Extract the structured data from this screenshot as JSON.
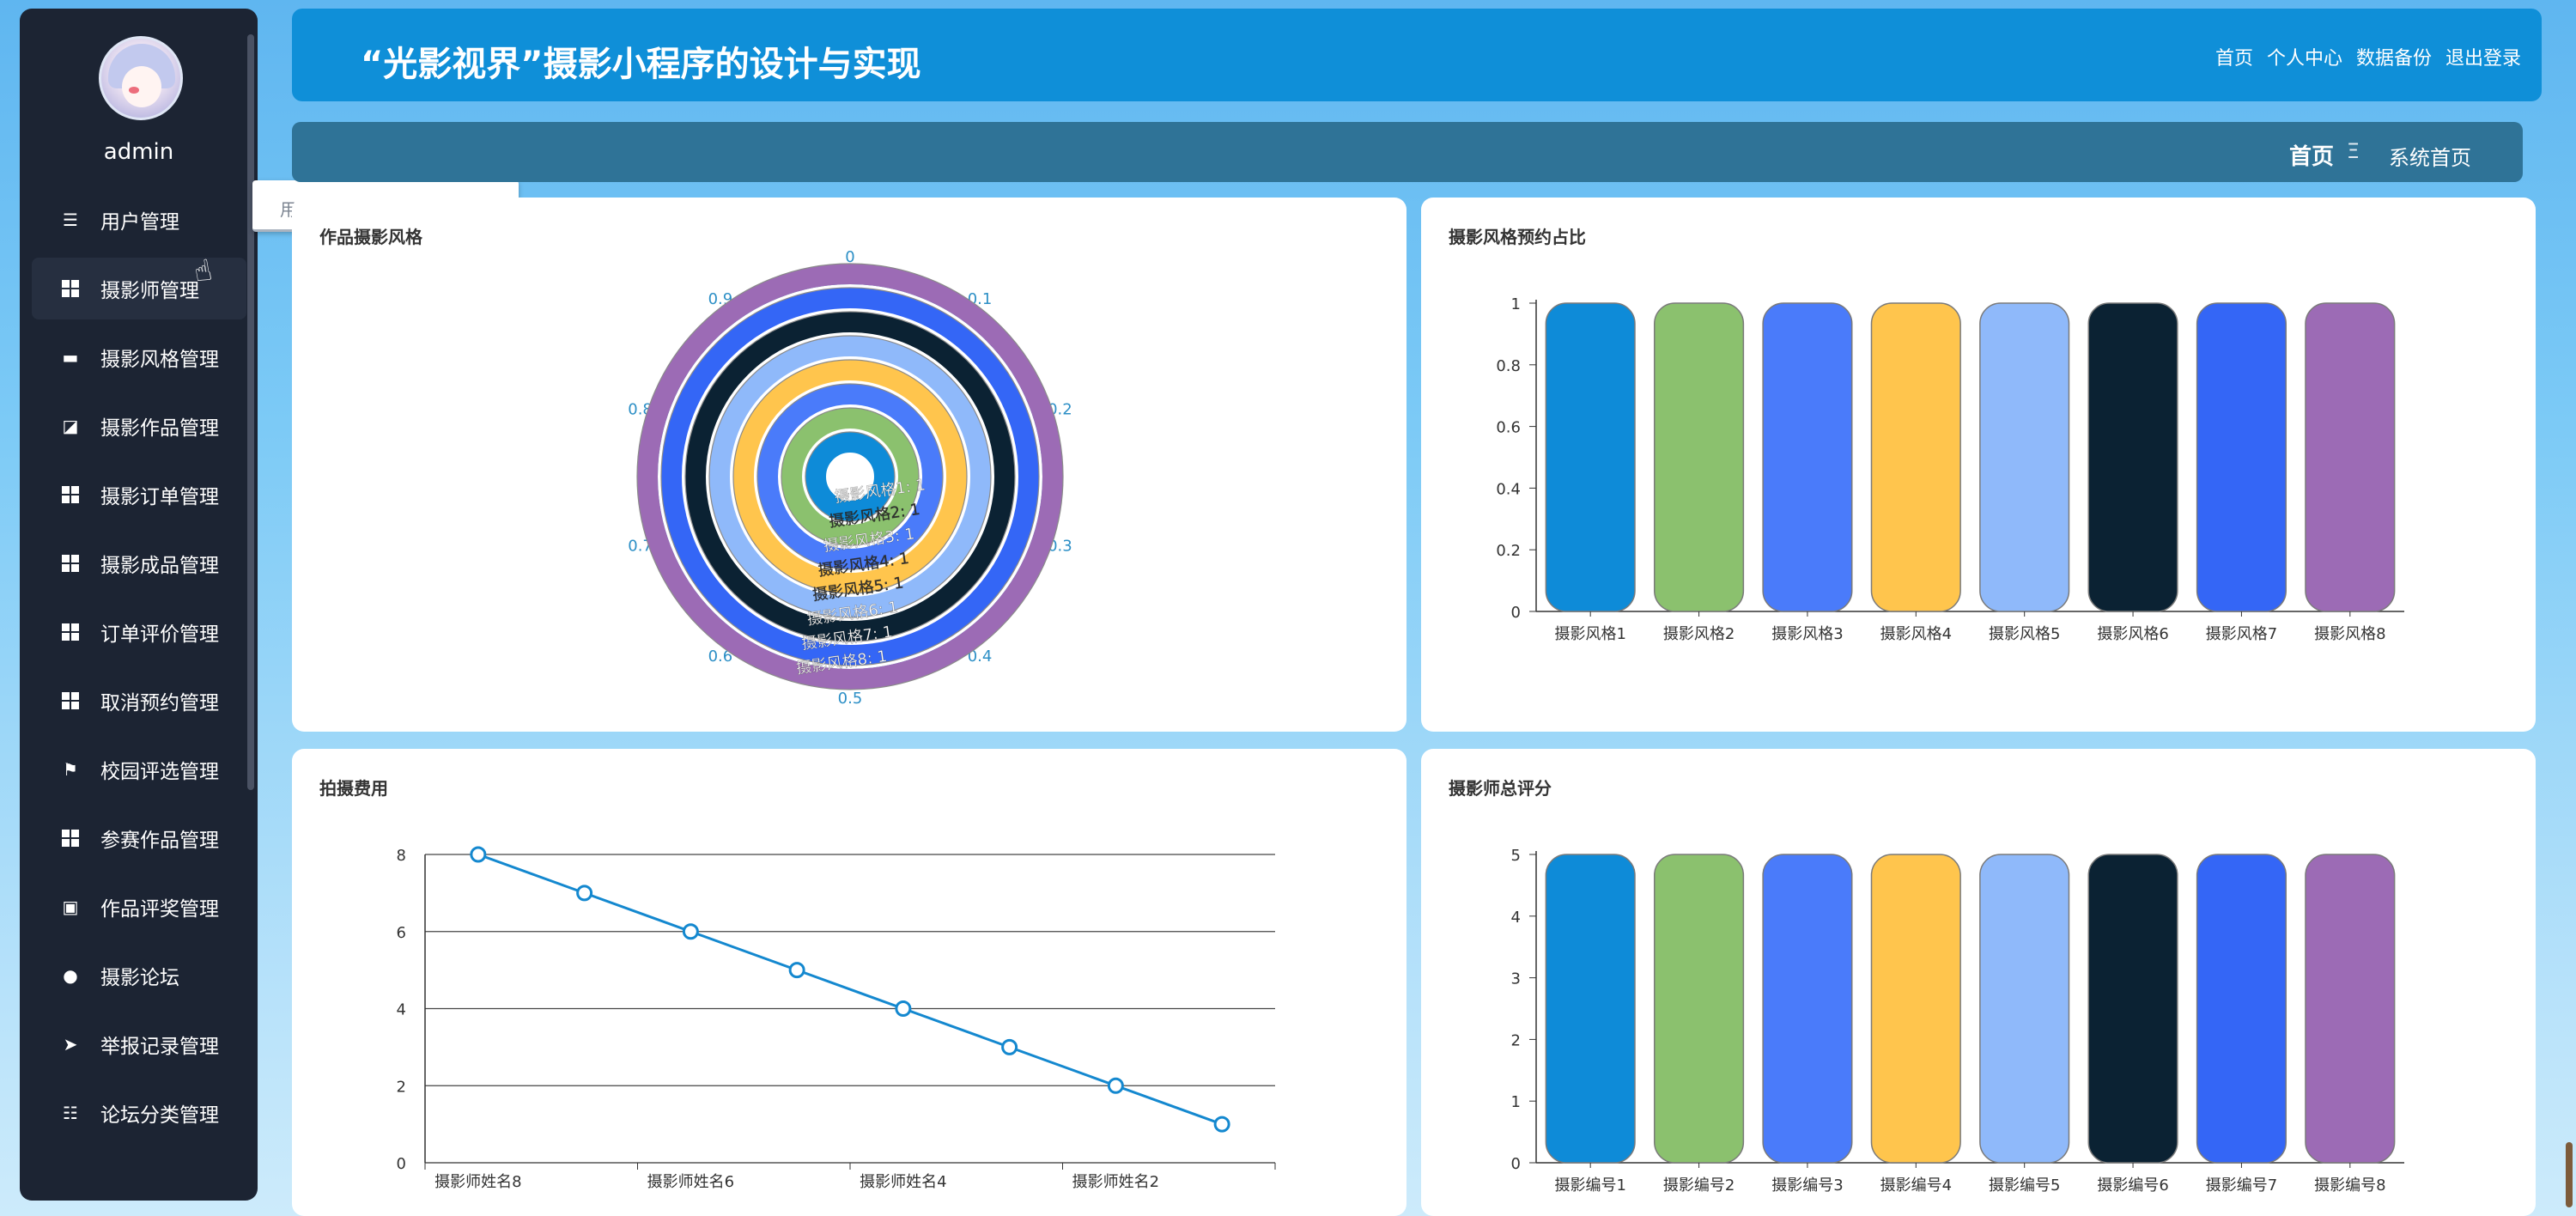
{
  "header": {
    "title": "“光影视界”摄影小程序的设计与实现",
    "nav": [
      "首页",
      "个人中心",
      "数据备份",
      "退出登录"
    ]
  },
  "breadcrumb": {
    "home": "首页",
    "separator": "Ξ",
    "current": "系统首页"
  },
  "sidebar": {
    "username": "admin",
    "items": [
      {
        "label": "用户管理",
        "icon": "list-icon"
      },
      {
        "label": "摄影师管理",
        "icon": "grid-icon"
      },
      {
        "label": "摄影风格管理",
        "icon": "monitor-icon"
      },
      {
        "label": "摄影作品管理",
        "icon": "chart-icon"
      },
      {
        "label": "摄影订单管理",
        "icon": "grid-icon"
      },
      {
        "label": "摄影成品管理",
        "icon": "grid-icon"
      },
      {
        "label": "订单评价管理",
        "icon": "grid-icon"
      },
      {
        "label": "取消预约管理",
        "icon": "grid-icon"
      },
      {
        "label": "校园评选管理",
        "icon": "flag-icon"
      },
      {
        "label": "参赛作品管理",
        "icon": "grid-icon"
      },
      {
        "label": "作品评奖管理",
        "icon": "clipboard-icon"
      },
      {
        "label": "摄影论坛",
        "icon": "user-icon"
      },
      {
        "label": "举报记录管理",
        "icon": "send-icon"
      },
      {
        "label": "论坛分类管理",
        "icon": "sliders-icon"
      }
    ],
    "submenu": {
      "label": "用户"
    }
  },
  "colors": {
    "palette": [
      "#0e8bd8",
      "#8bc16e",
      "#4a7bfa",
      "#ffc54d",
      "#8fb9fa",
      "#0b2233",
      "#3466f6",
      "#9c6bb5"
    ],
    "line": "#1488cf"
  },
  "chart_data": [
    {
      "type": "radial-bar",
      "title": "作品摄影风格",
      "angle_ticks": [
        "0",
        "0.1",
        "0.2",
        "0.3",
        "0.4",
        "0.5",
        "0.6",
        "0.7",
        "0.8",
        "0.9"
      ],
      "categories": [
        "摄影风格1",
        "摄影风格2",
        "摄影风格3",
        "摄影风格4",
        "摄影风格5",
        "摄影风格6",
        "摄影风格7",
        "摄影风格8"
      ],
      "values": [
        1,
        1,
        1,
        1,
        1,
        1,
        1,
        1
      ]
    },
    {
      "type": "bar",
      "title": "摄影风格预约占比",
      "categories": [
        "摄影风格1",
        "摄影风格2",
        "摄影风格3",
        "摄影风格4",
        "摄影风格5",
        "摄影风格6",
        "摄影风格7",
        "摄影风格8"
      ],
      "values": [
        1,
        1,
        1,
        1,
        1,
        1,
        1,
        1
      ],
      "yticks": [
        "0",
        "0.2",
        "0.4",
        "0.6",
        "0.8",
        "1"
      ],
      "ylim": [
        0,
        1
      ]
    },
    {
      "type": "line",
      "title": "拍摄费用",
      "x_tick_labels": [
        "摄影师姓名8",
        "摄影师姓名6",
        "摄影师姓名4",
        "摄影师姓名2"
      ],
      "values": [
        8,
        7,
        6,
        5,
        4,
        3,
        2,
        1
      ],
      "yticks": [
        "0",
        "2",
        "4",
        "6",
        "8"
      ],
      "ylim": [
        0,
        8
      ]
    },
    {
      "type": "bar",
      "title": "摄影师总评分",
      "categories": [
        "摄影编号1",
        "摄影编号2",
        "摄影编号3",
        "摄影编号4",
        "摄影编号5",
        "摄影编号6",
        "摄影编号7",
        "摄影编号8"
      ],
      "values": [
        5,
        5,
        5,
        5,
        5,
        5,
        5,
        5
      ],
      "yticks": [
        "0",
        "1",
        "2",
        "3",
        "4",
        "5"
      ],
      "ylim": [
        0,
        5
      ]
    }
  ]
}
